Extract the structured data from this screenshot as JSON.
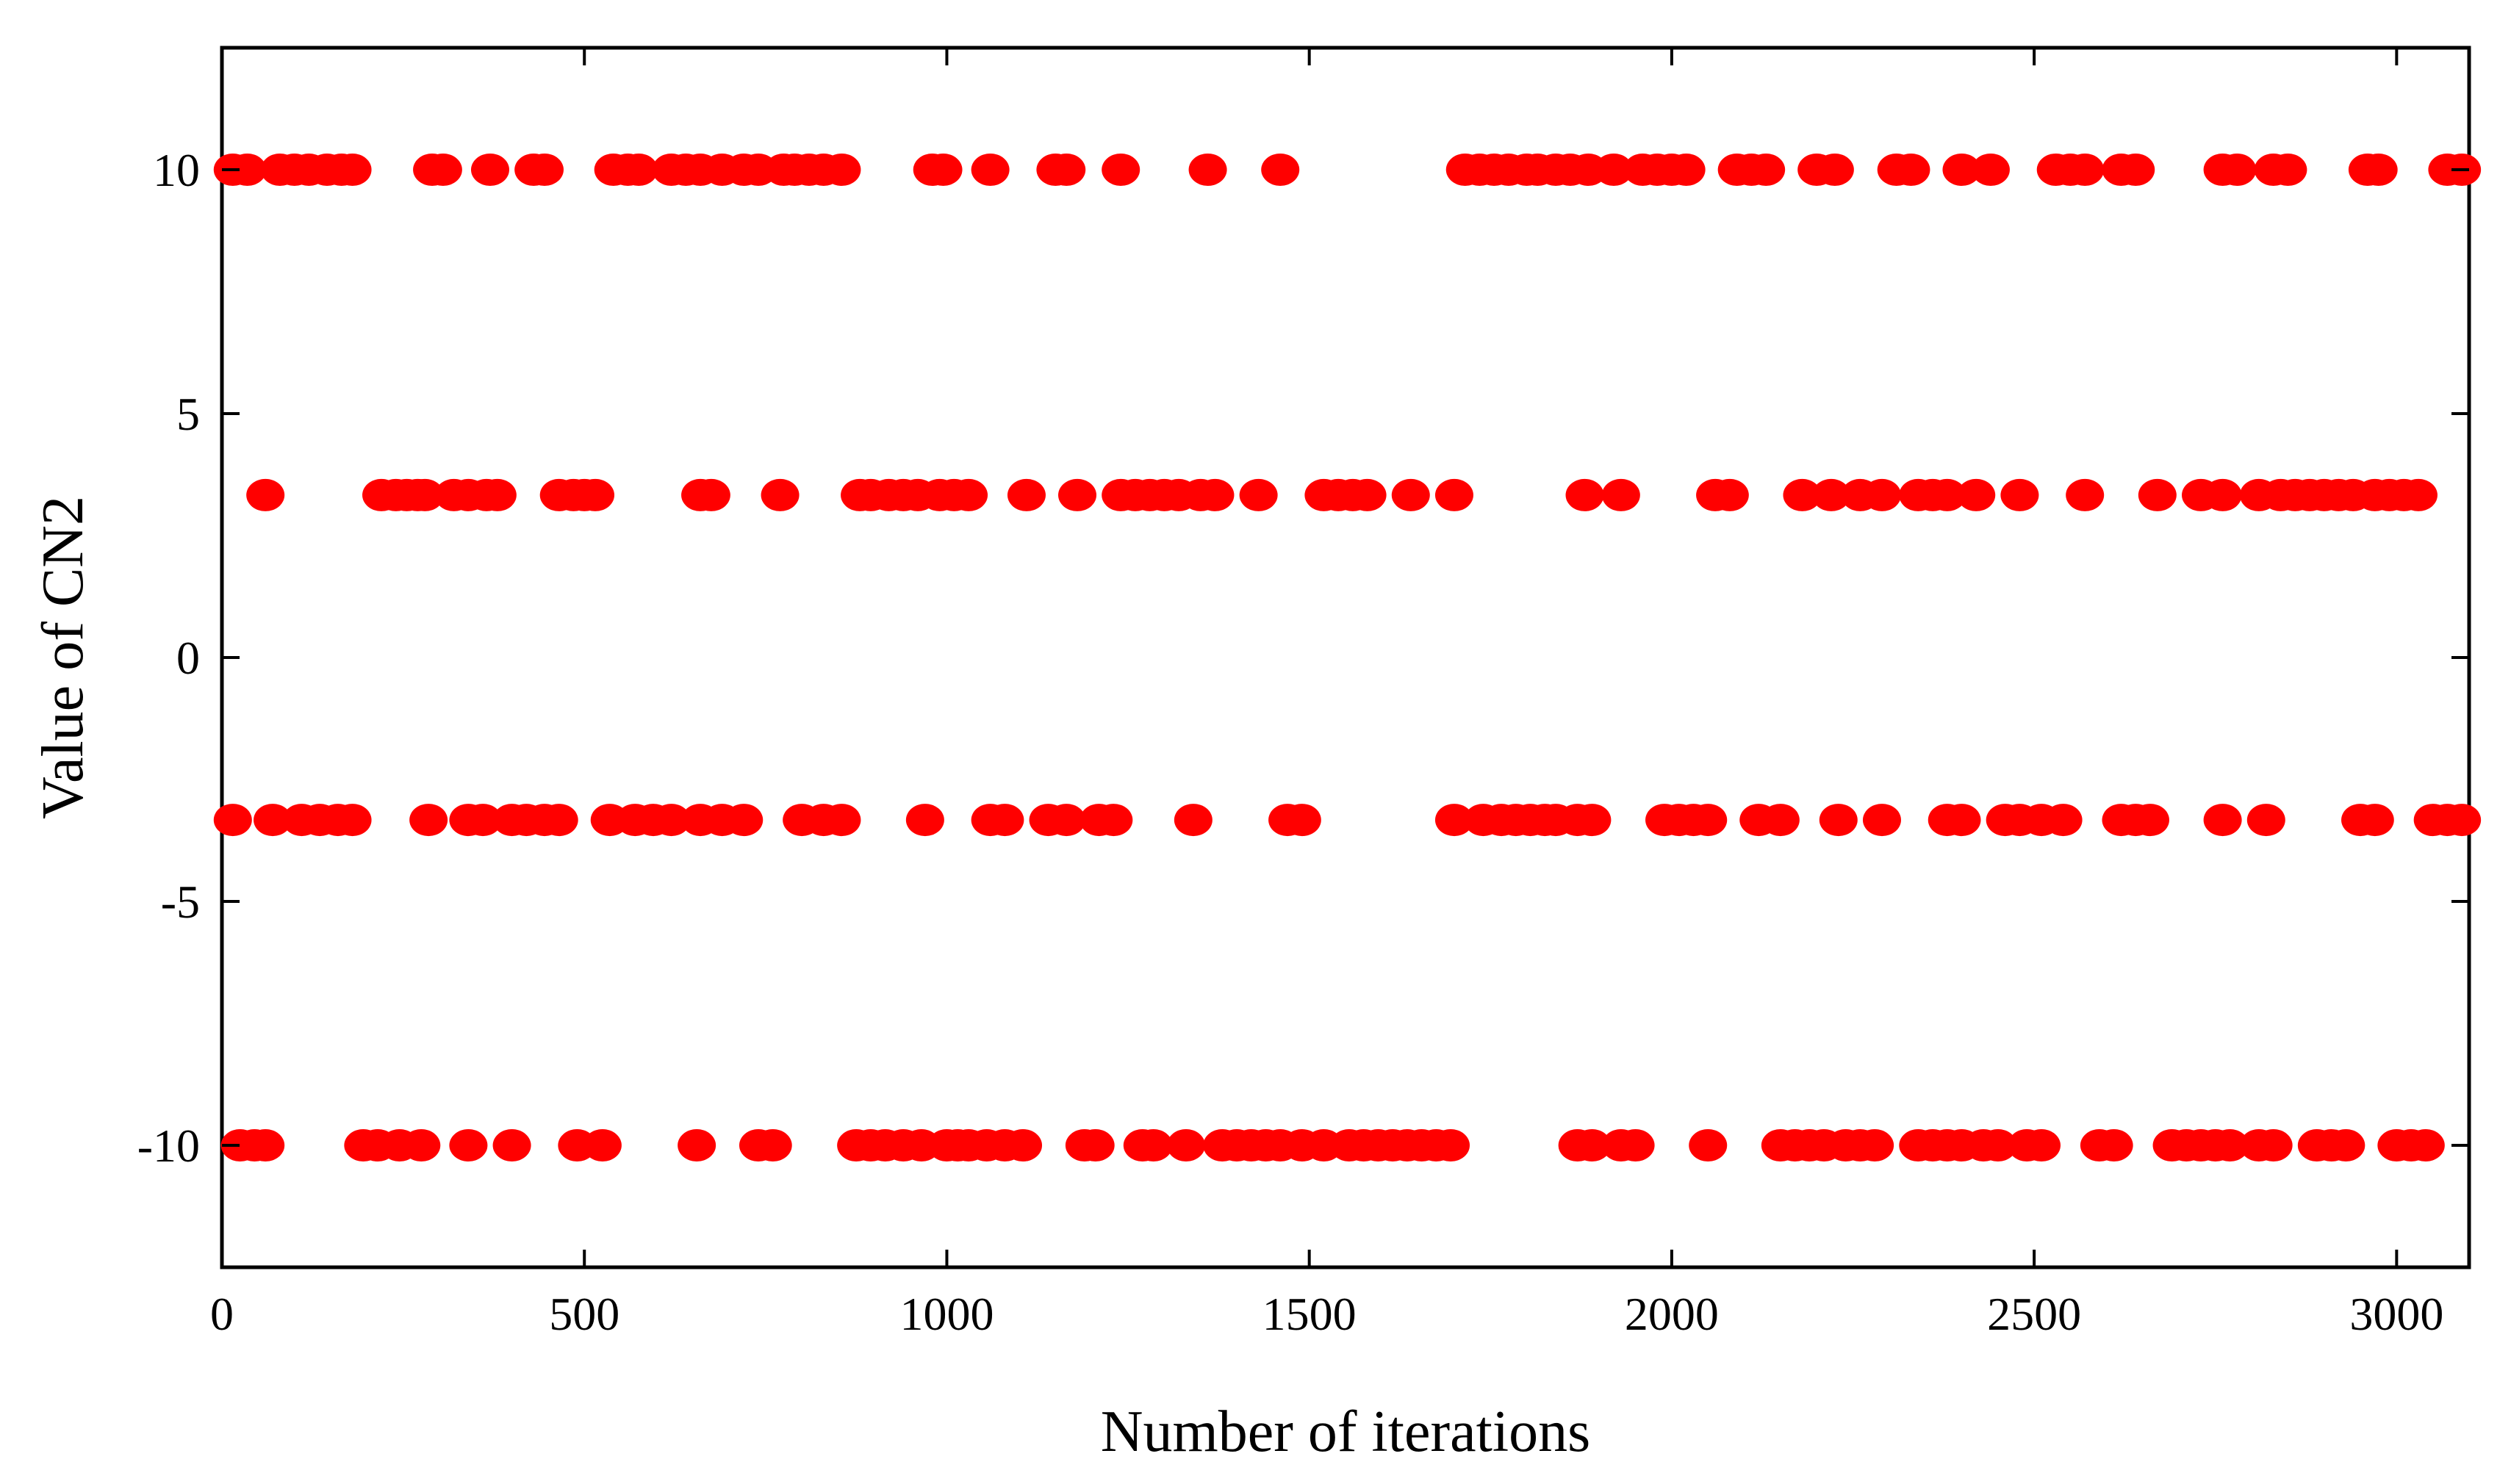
{
  "chart_data": {
    "type": "scatter",
    "title": "",
    "xlabel": "Number of iterations",
    "ylabel": "Value of CN2",
    "xlim": [
      0,
      3100
    ],
    "ylim": [
      -12.5,
      12.5
    ],
    "x_ticks": [
      0,
      500,
      1000,
      1500,
      2000,
      2500,
      3000
    ],
    "x_tick_labels": [
      "0",
      "500",
      "1000",
      "1500",
      "2000",
      "2500",
      "3000"
    ],
    "y_ticks": [
      10,
      5,
      0,
      -5,
      -10
    ],
    "y_tick_labels": [
      "10",
      "5",
      "0",
      "-5",
      "-10"
    ],
    "grid": false,
    "marker_color": "#ff0000",
    "series": [
      {
        "level": 10,
        "x": [
          15,
          35,
          80,
          100,
          120,
          145,
          165,
          180,
          290,
          305,
          370,
          430,
          445,
          540,
          560,
          575,
          620,
          640,
          660,
          690,
          720,
          740,
          775,
          790,
          810,
          830,
          855,
          980,
          995,
          1060,
          1150,
          1165,
          1240,
          1360,
          1460,
          1715,
          1735,
          1755,
          1775,
          1800,
          1815,
          1840,
          1860,
          1885,
          1920,
          1960,
          1980,
          2000,
          2020,
          2090,
          2110,
          2130,
          2200,
          2225,
          2310,
          2330,
          2400,
          2440,
          2530,
          2550,
          2570,
          2620,
          2640,
          2760,
          2780,
          2830,
          2850,
          2960,
          2975,
          3070,
          3090
        ],
        "y": [
          10,
          10,
          10,
          10,
          10,
          10,
          10,
          10,
          10,
          10,
          10,
          10,
          10,
          10,
          10,
          10,
          10,
          10,
          10,
          10,
          10,
          10,
          10,
          10,
          10,
          10,
          10,
          10,
          10,
          10,
          10,
          10,
          10,
          10,
          10,
          10,
          10,
          10,
          10,
          10,
          10,
          10,
          10,
          10,
          10,
          10,
          10,
          10,
          10,
          10,
          10,
          10,
          10,
          10,
          10,
          10,
          10,
          10,
          10,
          10,
          10,
          10,
          10,
          10,
          10,
          10,
          10,
          10,
          10,
          10,
          10
        ]
      },
      {
        "level": 3.33,
        "x": [
          60,
          220,
          240,
          255,
          270,
          280,
          320,
          340,
          365,
          380,
          465,
          485,
          500,
          515,
          660,
          675,
          770,
          880,
          895,
          920,
          940,
          960,
          990,
          1010,
          1030,
          1110,
          1180,
          1240,
          1260,
          1280,
          1300,
          1320,
          1350,
          1370,
          1430,
          1520,
          1540,
          1560,
          1580,
          1640,
          1700,
          1880,
          1930,
          2060,
          2080,
          2180,
          2220,
          2260,
          2290,
          2340,
          2360,
          2380,
          2420,
          2480,
          2570,
          2670,
          2730,
          2760,
          2810,
          2840,
          2860,
          2880,
          2900,
          2920,
          2940,
          2970,
          2990,
          3010,
          3030
        ],
        "y": [
          3.33,
          3.33,
          3.33,
          3.33,
          3.33,
          3.33,
          3.33,
          3.33,
          3.33,
          3.33,
          3.33,
          3.33,
          3.33,
          3.33,
          3.33,
          3.33,
          3.33,
          3.33,
          3.33,
          3.33,
          3.33,
          3.33,
          3.33,
          3.33,
          3.33,
          3.33,
          3.33,
          3.33,
          3.33,
          3.33,
          3.33,
          3.33,
          3.33,
          3.33,
          3.33,
          3.33,
          3.33,
          3.33,
          3.33,
          3.33,
          3.33,
          3.33,
          3.33,
          3.33,
          3.33,
          3.33,
          3.33,
          3.33,
          3.33,
          3.33,
          3.33,
          3.33,
          3.33,
          3.33,
          3.33,
          3.33,
          3.33,
          3.33,
          3.33,
          3.33,
          3.33,
          3.33,
          3.33,
          3.33,
          3.33,
          3.33,
          3.33,
          3.33,
          3.33
        ]
      },
      {
        "level": -3.33,
        "x": [
          15,
          70,
          110,
          135,
          160,
          180,
          285,
          340,
          360,
          400,
          420,
          445,
          465,
          535,
          570,
          595,
          620,
          660,
          690,
          720,
          800,
          830,
          855,
          970,
          1060,
          1080,
          1140,
          1165,
          1210,
          1230,
          1340,
          1470,
          1490,
          1700,
          1740,
          1765,
          1785,
          1805,
          1825,
          1840,
          1870,
          1890,
          1990,
          2010,
          2030,
          2050,
          2120,
          2150,
          2230,
          2290,
          2380,
          2400,
          2460,
          2480,
          2510,
          2540,
          2620,
          2640,
          2660,
          2760,
          2820,
          2950,
          2970,
          3050,
          3070,
          3090
        ],
        "y": [
          -3.33,
          -3.33,
          -3.33,
          -3.33,
          -3.33,
          -3.33,
          -3.33,
          -3.33,
          -3.33,
          -3.33,
          -3.33,
          -3.33,
          -3.33,
          -3.33,
          -3.33,
          -3.33,
          -3.33,
          -3.33,
          -3.33,
          -3.33,
          -3.33,
          -3.33,
          -3.33,
          -3.33,
          -3.33,
          -3.33,
          -3.33,
          -3.33,
          -3.33,
          -3.33,
          -3.33,
          -3.33,
          -3.33,
          -3.33,
          -3.33,
          -3.33,
          -3.33,
          -3.33,
          -3.33,
          -3.33,
          -3.33,
          -3.33,
          -3.33,
          -3.33,
          -3.33,
          -3.33,
          -3.33,
          -3.33,
          -3.33,
          -3.33,
          -3.33,
          -3.33,
          -3.33,
          -3.33,
          -3.33,
          -3.33,
          -3.33,
          -3.33,
          -3.33,
          -3.33,
          -3.33,
          -3.33,
          -3.33,
          -3.33,
          -3.33,
          -3.33
        ]
      },
      {
        "level": -10,
        "x": [
          25,
          45,
          60,
          195,
          215,
          245,
          275,
          340,
          400,
          490,
          525,
          655,
          740,
          760,
          875,
          895,
          915,
          940,
          965,
          1000,
          1015,
          1030,
          1055,
          1080,
          1105,
          1190,
          1205,
          1270,
          1285,
          1330,
          1380,
          1400,
          1420,
          1440,
          1460,
          1490,
          1520,
          1555,
          1575,
          1595,
          1615,
          1635,
          1655,
          1675,
          1695,
          1870,
          1890,
          1930,
          1950,
          2050,
          2150,
          2170,
          2190,
          2210,
          2240,
          2260,
          2280,
          2340,
          2360,
          2380,
          2400,
          2430,
          2450,
          2490,
          2510,
          2590,
          2610,
          2690,
          2710,
          2730,
          2750,
          2770,
          2810,
          2830,
          2890,
          2910,
          2930,
          3000,
          3020,
          3040
        ],
        "y": [
          -10,
          -10,
          -10,
          -10,
          -10,
          -10,
          -10,
          -10,
          -10,
          -10,
          -10,
          -10,
          -10,
          -10,
          -10,
          -10,
          -10,
          -10,
          -10,
          -10,
          -10,
          -10,
          -10,
          -10,
          -10,
          -10,
          -10,
          -10,
          -10,
          -10,
          -10,
          -10,
          -10,
          -10,
          -10,
          -10,
          -10,
          -10,
          -10,
          -10,
          -10,
          -10,
          -10,
          -10,
          -10,
          -10,
          -10,
          -10,
          -10,
          -10,
          -10,
          -10,
          -10,
          -10,
          -10,
          -10,
          -10,
          -10,
          -10,
          -10,
          -10,
          -10,
          -10,
          -10,
          -10,
          -10,
          -10,
          -10,
          -10,
          -10,
          -10,
          -10,
          -10,
          -10,
          -10,
          -10,
          -10,
          -10,
          -10,
          -10
        ]
      }
    ]
  }
}
